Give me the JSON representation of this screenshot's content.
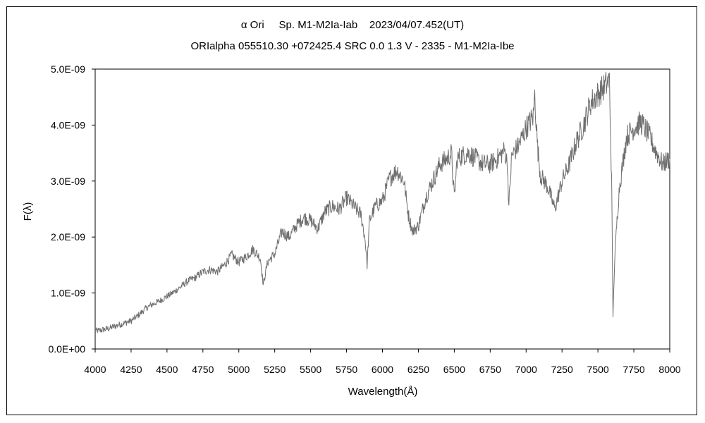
{
  "chart_data": {
    "type": "line",
    "title": "α Ori     Sp. M1-M2Ia-Iab    2023/04/07.452(UT)",
    "subtitle": "ORIalpha 055510.30 +072425.4 SRC 0.0 1.3 V - 2335 - M1-M2Ia-Ibe",
    "xlabel": "Wavelength(Å)",
    "ylabel": "F(λ)",
    "xlim": [
      4000,
      8000
    ],
    "ylim": [
      0,
      5e-09
    ],
    "x_ticks": [
      "4000",
      "4250",
      "4500",
      "4750",
      "5000",
      "5250",
      "5500",
      "5750",
      "6000",
      "6250",
      "6500",
      "6750",
      "7000",
      "7250",
      "7500",
      "7750",
      "8000"
    ],
    "y_ticks": [
      "0.0E+00",
      "1.0E-09",
      "2.0E-09",
      "3.0E-09",
      "4.0E-09",
      "5.0E-09"
    ],
    "grid": false,
    "legend": "none",
    "line_color": "#6f6f6f",
    "series": [
      {
        "name": "",
        "points": [
          [
            4000,
            3.2e-10
          ],
          [
            4050,
            3.4e-10
          ],
          [
            4100,
            3.7e-10
          ],
          [
            4150,
            4.2e-10
          ],
          [
            4200,
            4.6e-10
          ],
          [
            4250,
            5e-10
          ],
          [
            4300,
            6e-10
          ],
          [
            4350,
            7.2e-10
          ],
          [
            4400,
            8e-10
          ],
          [
            4450,
            8.6e-10
          ],
          [
            4500,
            9.4e-10
          ],
          [
            4550,
            1.02e-09
          ],
          [
            4600,
            1.12e-09
          ],
          [
            4650,
            1.22e-09
          ],
          [
            4700,
            1.28e-09
          ],
          [
            4750,
            1.38e-09
          ],
          [
            4800,
            1.42e-09
          ],
          [
            4850,
            1.38e-09
          ],
          [
            4900,
            1.5e-09
          ],
          [
            4950,
            1.68e-09
          ],
          [
            5000,
            1.55e-09
          ],
          [
            5050,
            1.65e-09
          ],
          [
            5100,
            1.78e-09
          ],
          [
            5150,
            1.62e-09
          ],
          [
            5170,
            1.15e-09
          ],
          [
            5200,
            1.55e-09
          ],
          [
            5250,
            1.7e-09
          ],
          [
            5300,
            2.1e-09
          ],
          [
            5350,
            2e-09
          ],
          [
            5400,
            2.2e-09
          ],
          [
            5450,
            2.35e-09
          ],
          [
            5500,
            2.3e-09
          ],
          [
            5550,
            2.15e-09
          ],
          [
            5600,
            2.45e-09
          ],
          [
            5650,
            2.55e-09
          ],
          [
            5700,
            2.5e-09
          ],
          [
            5750,
            2.7e-09
          ],
          [
            5800,
            2.55e-09
          ],
          [
            5850,
            2.4e-09
          ],
          [
            5880,
            1.95e-09
          ],
          [
            5893,
            1.5e-09
          ],
          [
            5910,
            2.3e-09
          ],
          [
            5950,
            2.55e-09
          ],
          [
            6000,
            2.65e-09
          ],
          [
            6050,
            3.05e-09
          ],
          [
            6100,
            3.2e-09
          ],
          [
            6150,
            3e-09
          ],
          [
            6180,
            2.4e-09
          ],
          [
            6210,
            2.1e-09
          ],
          [
            6250,
            2.2e-09
          ],
          [
            6300,
            2.7e-09
          ],
          [
            6350,
            3e-09
          ],
          [
            6400,
            3.3e-09
          ],
          [
            6450,
            3.4e-09
          ],
          [
            6480,
            3.5e-09
          ],
          [
            6500,
            2.7e-09
          ],
          [
            6520,
            3.4e-09
          ],
          [
            6550,
            3.45e-09
          ],
          [
            6600,
            3.5e-09
          ],
          [
            6650,
            3.4e-09
          ],
          [
            6700,
            3.3e-09
          ],
          [
            6750,
            3.3e-09
          ],
          [
            6800,
            3.4e-09
          ],
          [
            6850,
            3.55e-09
          ],
          [
            6870,
            3.3e-09
          ],
          [
            6880,
            2.55e-09
          ],
          [
            6900,
            3.45e-09
          ],
          [
            6950,
            3.65e-09
          ],
          [
            7000,
            3.95e-09
          ],
          [
            7050,
            4.15e-09
          ],
          [
            7060,
            4.55e-09
          ],
          [
            7080,
            3.6e-09
          ],
          [
            7100,
            3.1e-09
          ],
          [
            7150,
            2.9e-09
          ],
          [
            7200,
            2.5e-09
          ],
          [
            7250,
            3e-09
          ],
          [
            7300,
            3.3e-09
          ],
          [
            7350,
            3.7e-09
          ],
          [
            7400,
            4e-09
          ],
          [
            7450,
            4.4e-09
          ],
          [
            7500,
            4.55e-09
          ],
          [
            7550,
            4.7e-09
          ],
          [
            7580,
            4.8e-09
          ],
          [
            7595,
            3e-09
          ],
          [
            7605,
            6e-10
          ],
          [
            7615,
            1.5e-09
          ],
          [
            7630,
            2.2e-09
          ],
          [
            7650,
            2.9e-09
          ],
          [
            7700,
            3.8e-09
          ],
          [
            7750,
            3.95e-09
          ],
          [
            7800,
            4.05e-09
          ],
          [
            7850,
            3.85e-09
          ],
          [
            7900,
            3.55e-09
          ],
          [
            7950,
            3.3e-09
          ],
          [
            8000,
            3.4e-09
          ]
        ]
      }
    ]
  }
}
